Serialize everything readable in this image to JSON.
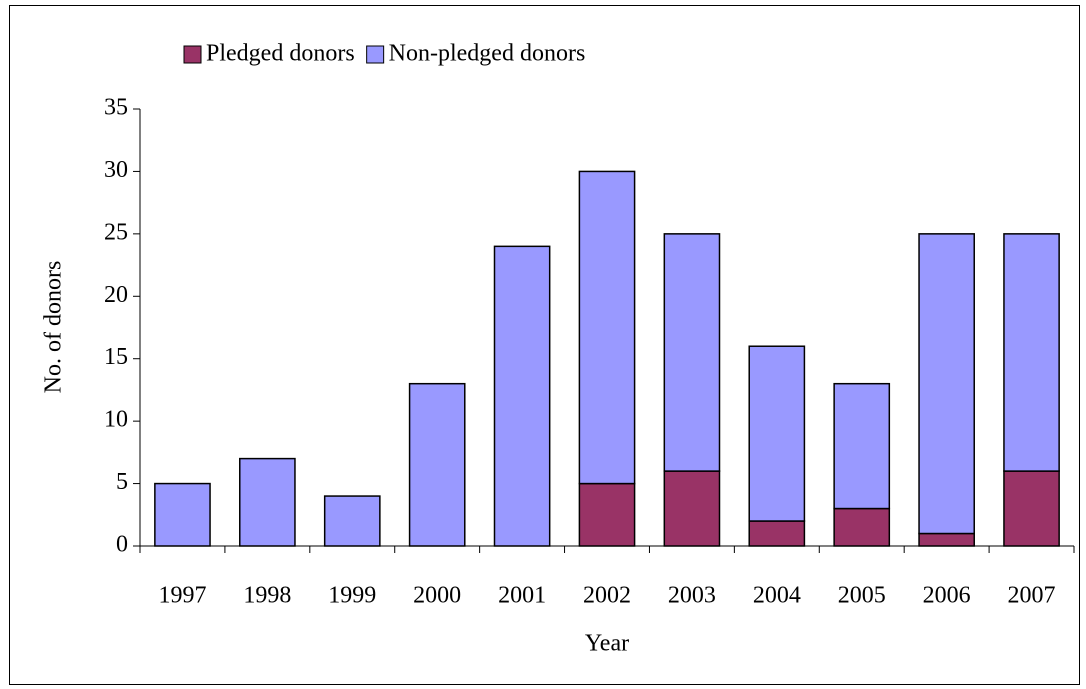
{
  "chart_data": {
    "type": "bar",
    "stacked": true,
    "x_label": "Year",
    "y_label": "No. of donors",
    "categories": [
      "1997",
      "1998",
      "1999",
      "2000",
      "2001",
      "2002",
      "2003",
      "2004",
      "2005",
      "2006",
      "2007"
    ],
    "series": [
      {
        "name": "Pledged donors",
        "color": "#993366",
        "values": [
          0,
          0,
          0,
          0,
          0,
          5,
          6,
          2,
          3,
          1,
          6
        ]
      },
      {
        "name": "Non-pledged donors",
        "color": "#9999ff",
        "values": [
          5,
          7,
          4,
          13,
          24,
          25,
          19,
          14,
          10,
          24,
          19
        ]
      }
    ],
    "ylim": [
      0,
      35
    ],
    "yticks": [
      0,
      5,
      10,
      15,
      20,
      25,
      30,
      35
    ],
    "grid": false,
    "legend": "top"
  }
}
